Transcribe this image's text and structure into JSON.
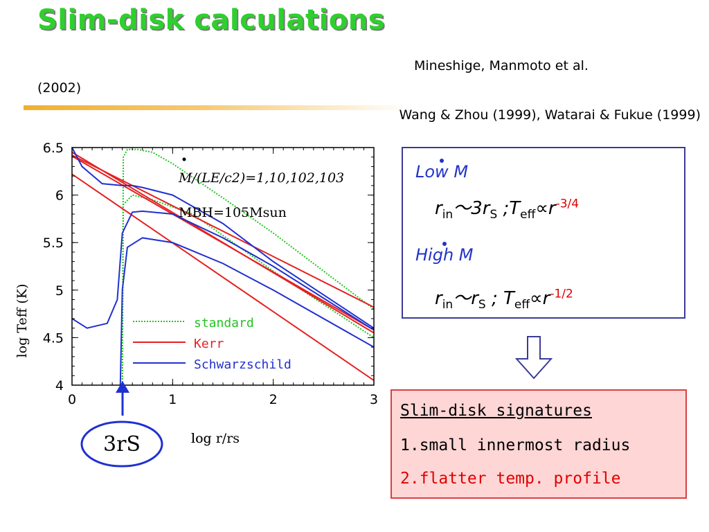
{
  "slide": {
    "title": "Slim-disk calculations",
    "ref_line1": "Mineshige, Manmoto et al.",
    "ref_line1_year": "(2002)",
    "ref_line2": "Wang & Zhou (1999), Watarai & Fukue (1999)"
  },
  "figure": {
    "annotation_mdot": "M/(LE/c2)=1,10,102,103",
    "annotation_mbh": "MBH=105Msun",
    "marker_label": "3rS"
  },
  "chart_data": {
    "type": "line",
    "xlabel": "log r/rs",
    "ylabel": "log Teff (K)",
    "xlim": [
      0,
      3
    ],
    "ylim": [
      4,
      6.5
    ],
    "x_ticks": [
      0,
      1,
      2,
      3
    ],
    "y_ticks": [
      4,
      4.5,
      5,
      5.5,
      6,
      6.5
    ],
    "legend_placement": "lower-left",
    "legend": [
      {
        "name": "standard",
        "color": "#22c422",
        "style": "dotted"
      },
      {
        "name": "Kerr",
        "color": "#e62020",
        "style": "solid"
      },
      {
        "name": "Schwarzschild",
        "color": "#2030d0",
        "style": "solid"
      }
    ],
    "series": [
      {
        "model": "standard",
        "x": [
          0.5,
          0.51,
          0.55,
          0.65,
          0.8,
          1.0,
          1.5,
          2.0,
          2.5,
          3.0
        ],
        "y": [
          4.0,
          6.4,
          6.48,
          6.48,
          6.45,
          6.33,
          5.97,
          5.6,
          5.2,
          4.8
        ]
      },
      {
        "model": "standard",
        "x": [
          0.5,
          0.51,
          0.6,
          0.8,
          1.2,
          2.0,
          3.0
        ],
        "y": [
          4.0,
          5.9,
          6.0,
          5.95,
          5.8,
          5.2,
          4.5
        ]
      },
      {
        "model": "Kerr",
        "x": [
          0,
          3
        ],
        "y": [
          6.42,
          4.82
        ]
      },
      {
        "model": "Kerr",
        "x": [
          0,
          3
        ],
        "y": [
          6.41,
          4.58
        ]
      },
      {
        "model": "Kerr",
        "x": [
          0,
          3
        ],
        "y": [
          6.45,
          4.55
        ]
      },
      {
        "model": "Kerr",
        "x": [
          0,
          3
        ],
        "y": [
          6.22,
          4.05
        ]
      },
      {
        "model": "Schwarzschild",
        "x": [
          0,
          0.1,
          0.3,
          0.5,
          0.6,
          0.7,
          1.0,
          1.5,
          2.0,
          2.5,
          3.0
        ],
        "y": [
          6.5,
          6.3,
          6.12,
          6.1,
          6.1,
          6.08,
          6.0,
          5.7,
          5.3,
          4.95,
          4.6
        ]
      },
      {
        "model": "Schwarzschild",
        "x": [
          0,
          0.15,
          0.35,
          0.45,
          0.5,
          0.6,
          0.7,
          1.0,
          1.5,
          2.0,
          3.0
        ],
        "y": [
          4.7,
          4.6,
          4.65,
          4.9,
          5.6,
          5.82,
          5.83,
          5.8,
          5.55,
          5.25,
          4.58
        ]
      },
      {
        "model": "Schwarzschild",
        "x": [
          0.48,
          0.5,
          0.55,
          0.7,
          1.0,
          1.5,
          2.0,
          3.0
        ],
        "y": [
          4.0,
          5.0,
          5.45,
          5.55,
          5.5,
          5.28,
          5.0,
          4.4
        ]
      }
    ]
  },
  "box1": {
    "low_heading": "Low M",
    "low_eq_r": "r",
    "low_eq_in": "in",
    "low_eq_mid": "～3r",
    "low_eq_s": "S",
    "low_eq_t": " ;T",
    "low_eq_eff": "eff",
    "low_eq_prop": "∝r",
    "low_eq_exp": "-3/4",
    "high_heading": "High M",
    "high_eq_r": "r",
    "high_eq_in": "in",
    "high_eq_mid": "～r",
    "high_eq_s": "S",
    "high_eq_t": " ; T",
    "high_eq_eff": "eff",
    "high_eq_prop": "∝r",
    "high_eq_exp": "-1/2"
  },
  "box2": {
    "title": "Slim-disk signatures",
    "item1": "1.small innermost radius",
    "item2": "2.flatter temp. profile"
  },
  "colors": {
    "title": "#2fcf2f",
    "heading_blue": "#2233cc",
    "box2_bg": "#ffd6d6",
    "item2": "#e00000"
  }
}
